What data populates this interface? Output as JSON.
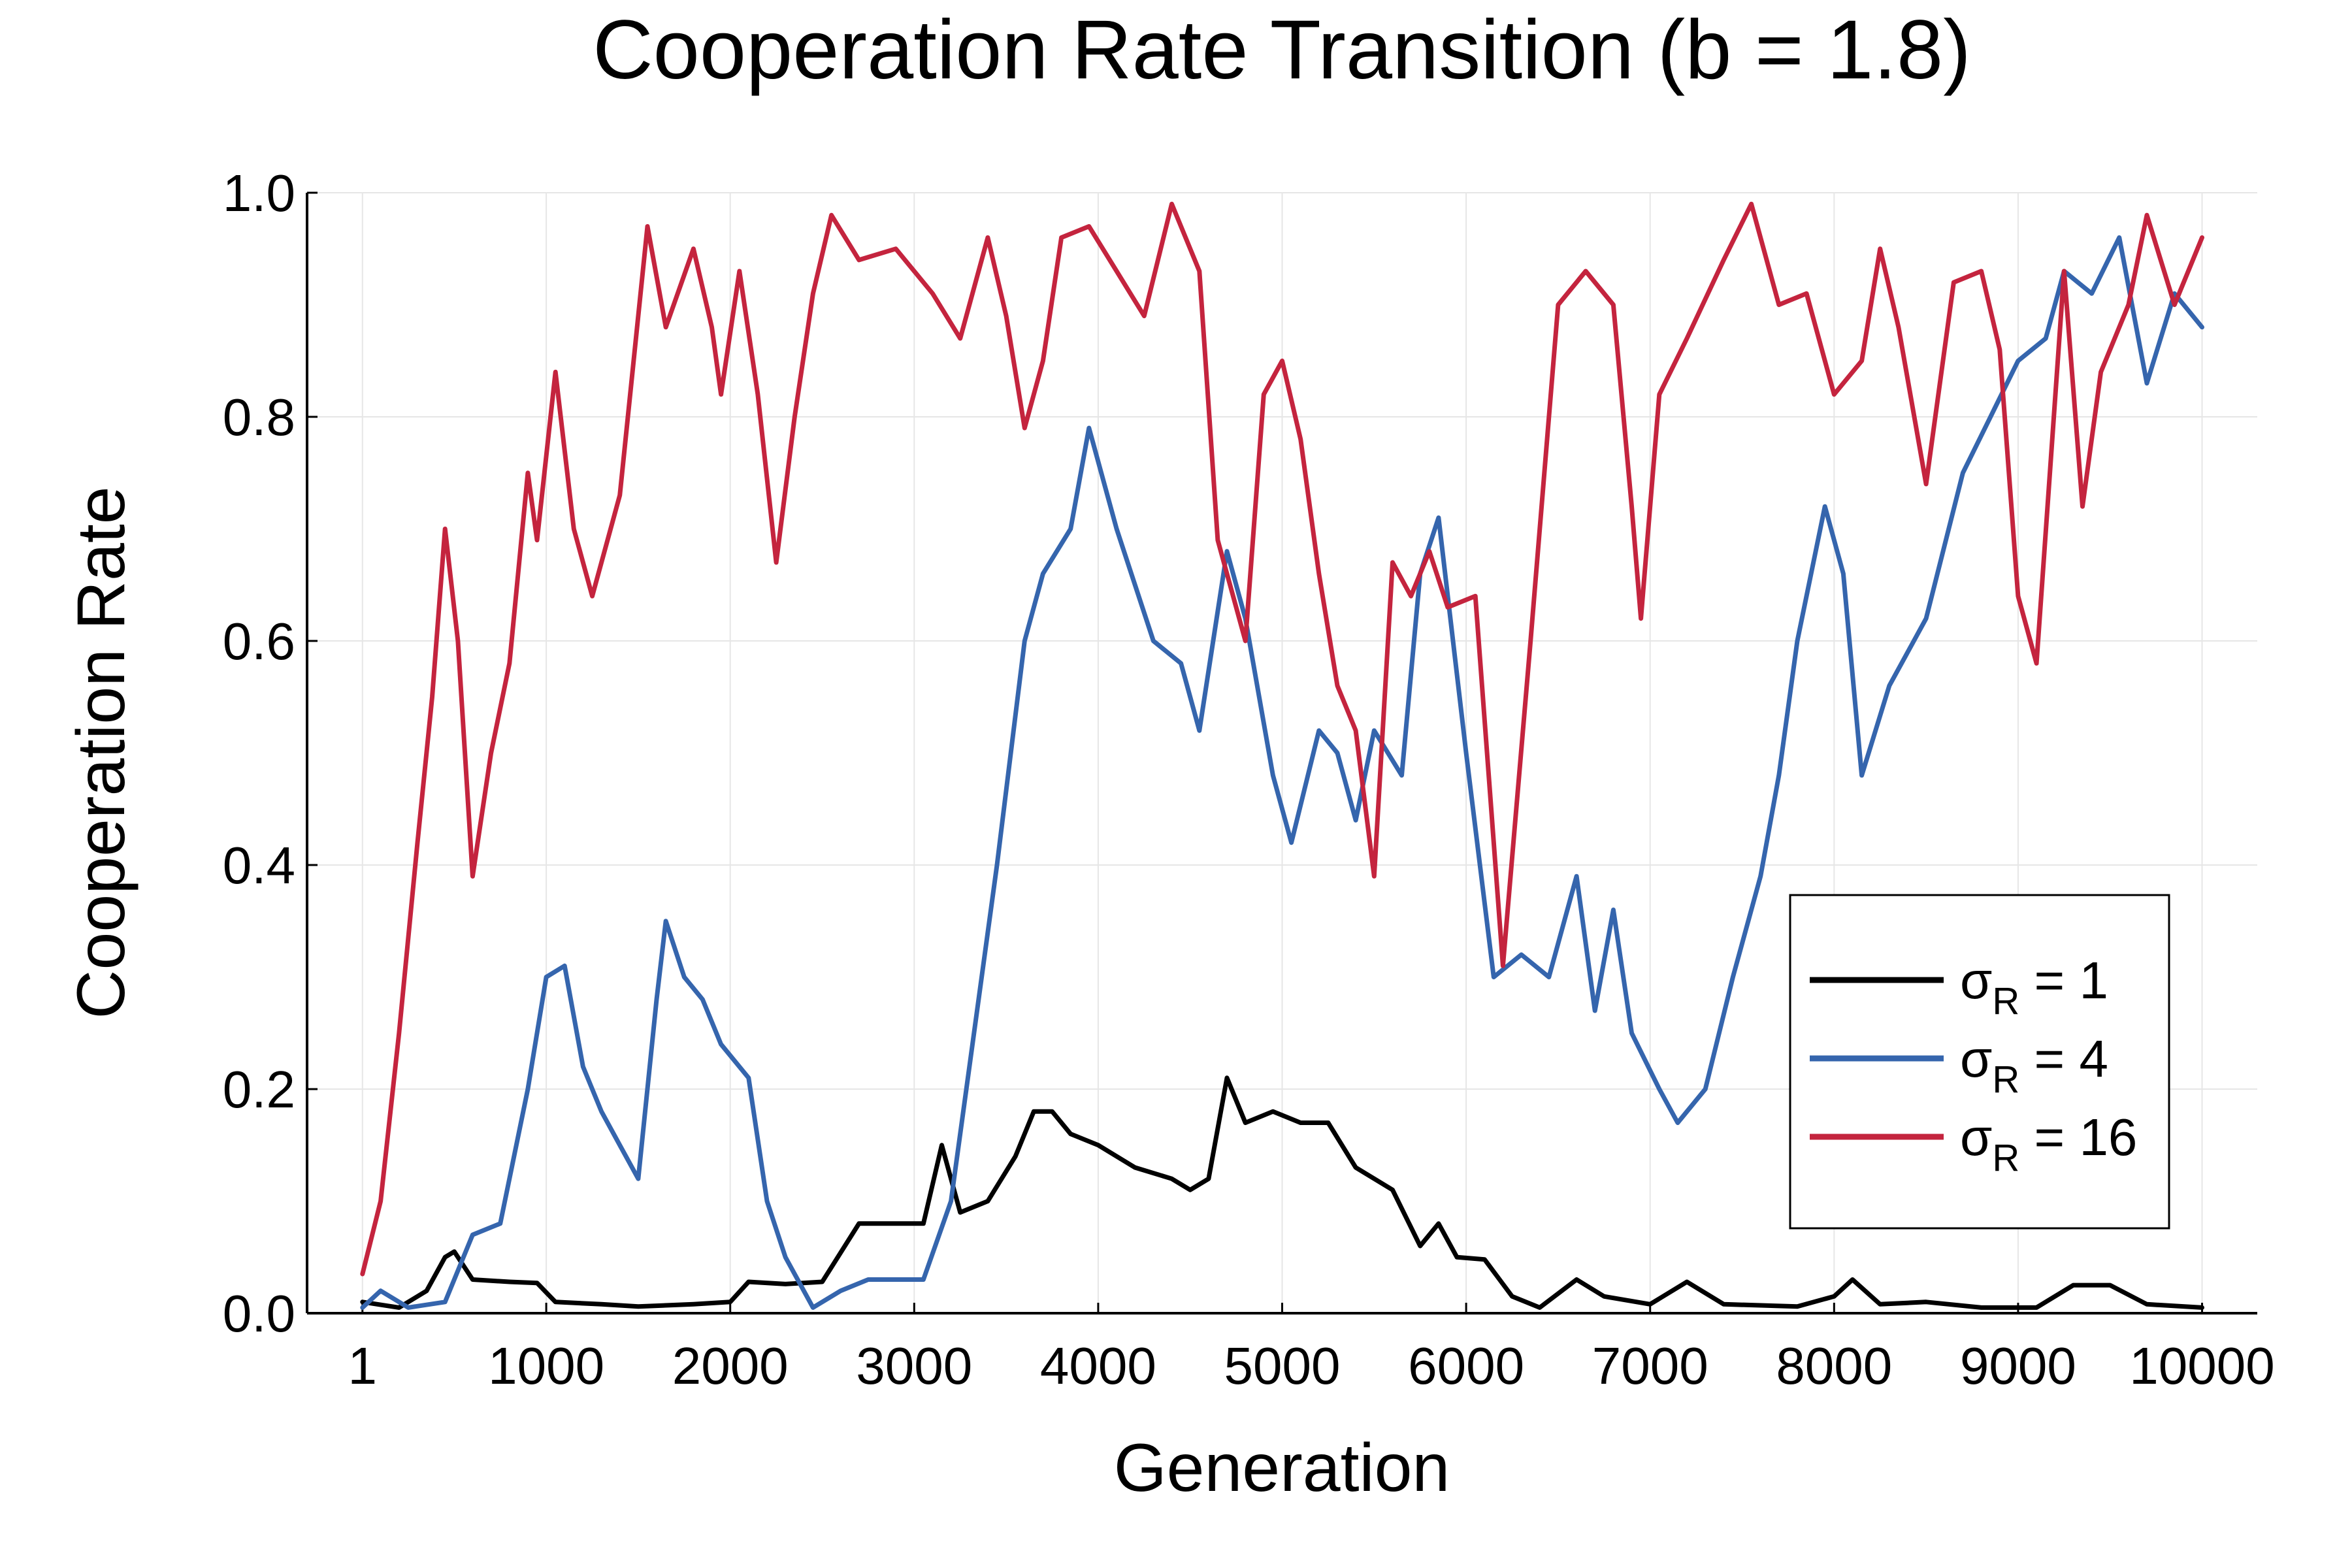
{
  "chart_data": {
    "type": "line",
    "title": "Cooperation Rate Transition (b = 1.8)",
    "xlabel": "Generation",
    "ylabel": "Cooperation Rate",
    "xlim": [
      -300,
      10300
    ],
    "ylim": [
      0,
      1
    ],
    "x_ticks": [
      1,
      1000,
      2000,
      3000,
      4000,
      5000,
      6000,
      7000,
      8000,
      9000,
      10000
    ],
    "x_tick_labels": [
      "1",
      "1000",
      "2000",
      "3000",
      "4000",
      "5000",
      "6000",
      "7000",
      "8000",
      "9000",
      "10000"
    ],
    "y_ticks": [
      0,
      0.2,
      0.4,
      0.6,
      0.8,
      1.0
    ],
    "y_tick_labels": [
      "0.0",
      "0.2",
      "0.4",
      "0.6",
      "0.8",
      "1.0"
    ],
    "grid": true,
    "legend_position": "bottom-right",
    "series": [
      {
        "name": "σ_R = 1",
        "legend_main": "σ",
        "legend_sub": "R",
        "legend_rest": " = 1",
        "color": "#000000",
        "points": [
          [
            1,
            0.01
          ],
          [
            200,
            0.005
          ],
          [
            350,
            0.02
          ],
          [
            450,
            0.05
          ],
          [
            500,
            0.055
          ],
          [
            600,
            0.03
          ],
          [
            800,
            0.028
          ],
          [
            950,
            0.027
          ],
          [
            1050,
            0.01
          ],
          [
            1300,
            0.008
          ],
          [
            1500,
            0.006
          ],
          [
            1800,
            0.008
          ],
          [
            2000,
            0.01
          ],
          [
            2100,
            0.028
          ],
          [
            2300,
            0.026
          ],
          [
            2500,
            0.028
          ],
          [
            2700,
            0.08
          ],
          [
            2900,
            0.08
          ],
          [
            3050,
            0.08
          ],
          [
            3150,
            0.15
          ],
          [
            3250,
            0.09
          ],
          [
            3400,
            0.1
          ],
          [
            3550,
            0.14
          ],
          [
            3650,
            0.18
          ],
          [
            3750,
            0.18
          ],
          [
            3850,
            0.16
          ],
          [
            4000,
            0.15
          ],
          [
            4200,
            0.13
          ],
          [
            4400,
            0.12
          ],
          [
            4500,
            0.11
          ],
          [
            4600,
            0.12
          ],
          [
            4700,
            0.21
          ],
          [
            4800,
            0.17
          ],
          [
            4950,
            0.18
          ],
          [
            5100,
            0.17
          ],
          [
            5250,
            0.17
          ],
          [
            5400,
            0.13
          ],
          [
            5600,
            0.11
          ],
          [
            5750,
            0.06
          ],
          [
            5850,
            0.08
          ],
          [
            5950,
            0.05
          ],
          [
            6100,
            0.048
          ],
          [
            6250,
            0.015
          ],
          [
            6400,
            0.005
          ],
          [
            6600,
            0.03
          ],
          [
            6750,
            0.015
          ],
          [
            7000,
            0.008
          ],
          [
            7200,
            0.028
          ],
          [
            7400,
            0.008
          ],
          [
            7800,
            0.006
          ],
          [
            8000,
            0.015
          ],
          [
            8100,
            0.03
          ],
          [
            8250,
            0.008
          ],
          [
            8500,
            0.01
          ],
          [
            8800,
            0.005
          ],
          [
            9100,
            0.005
          ],
          [
            9300,
            0.025
          ],
          [
            9500,
            0.025
          ],
          [
            9700,
            0.008
          ],
          [
            10000,
            0.005
          ]
        ]
      },
      {
        "name": "σ_R = 4",
        "legend_main": "σ",
        "legend_sub": "R",
        "legend_rest": " = 4",
        "color": "#3565ad",
        "points": [
          [
            1,
            0.005
          ],
          [
            100,
            0.02
          ],
          [
            250,
            0.005
          ],
          [
            450,
            0.01
          ],
          [
            600,
            0.07
          ],
          [
            750,
            0.08
          ],
          [
            900,
            0.2
          ],
          [
            1000,
            0.3
          ],
          [
            1100,
            0.31
          ],
          [
            1200,
            0.22
          ],
          [
            1300,
            0.18
          ],
          [
            1400,
            0.15
          ],
          [
            1500,
            0.12
          ],
          [
            1600,
            0.28
          ],
          [
            1650,
            0.35
          ],
          [
            1750,
            0.3
          ],
          [
            1850,
            0.28
          ],
          [
            1950,
            0.24
          ],
          [
            2100,
            0.21
          ],
          [
            2200,
            0.1
          ],
          [
            2300,
            0.05
          ],
          [
            2450,
            0.005
          ],
          [
            2600,
            0.02
          ],
          [
            2750,
            0.03
          ],
          [
            2900,
            0.03
          ],
          [
            3050,
            0.03
          ],
          [
            3200,
            0.1
          ],
          [
            3300,
            0.22
          ],
          [
            3450,
            0.4
          ],
          [
            3600,
            0.6
          ],
          [
            3700,
            0.66
          ],
          [
            3850,
            0.7
          ],
          [
            3950,
            0.79
          ],
          [
            4100,
            0.7
          ],
          [
            4300,
            0.6
          ],
          [
            4450,
            0.58
          ],
          [
            4550,
            0.52
          ],
          [
            4700,
            0.68
          ],
          [
            4800,
            0.62
          ],
          [
            4950,
            0.48
          ],
          [
            5050,
            0.42
          ],
          [
            5200,
            0.52
          ],
          [
            5300,
            0.5
          ],
          [
            5400,
            0.44
          ],
          [
            5500,
            0.52
          ],
          [
            5650,
            0.48
          ],
          [
            5750,
            0.66
          ],
          [
            5850,
            0.71
          ],
          [
            6000,
            0.5
          ],
          [
            6150,
            0.3
          ],
          [
            6300,
            0.32
          ],
          [
            6450,
            0.3
          ],
          [
            6600,
            0.39
          ],
          [
            6700,
            0.27
          ],
          [
            6800,
            0.36
          ],
          [
            6900,
            0.25
          ],
          [
            7050,
            0.2
          ],
          [
            7150,
            0.17
          ],
          [
            7300,
            0.2
          ],
          [
            7450,
            0.3
          ],
          [
            7600,
            0.39
          ],
          [
            7700,
            0.48
          ],
          [
            7800,
            0.6
          ],
          [
            7950,
            0.72
          ],
          [
            8050,
            0.66
          ],
          [
            8150,
            0.48
          ],
          [
            8300,
            0.56
          ],
          [
            8500,
            0.62
          ],
          [
            8700,
            0.75
          ],
          [
            8850,
            0.8
          ],
          [
            9000,
            0.85
          ],
          [
            9150,
            0.87
          ],
          [
            9250,
            0.93
          ],
          [
            9400,
            0.91
          ],
          [
            9550,
            0.96
          ],
          [
            9700,
            0.83
          ],
          [
            9850,
            0.91
          ],
          [
            10000,
            0.88
          ]
        ]
      },
      {
        "name": "σ_R = 16",
        "legend_main": "σ",
        "legend_sub": "R",
        "legend_rest": " = 16",
        "color": "#c4243e",
        "points": [
          [
            1,
            0.035
          ],
          [
            100,
            0.1
          ],
          [
            200,
            0.25
          ],
          [
            300,
            0.42
          ],
          [
            380,
            0.55
          ],
          [
            450,
            0.7
          ],
          [
            520,
            0.6
          ],
          [
            600,
            0.39
          ],
          [
            700,
            0.5
          ],
          [
            800,
            0.58
          ],
          [
            900,
            0.75
          ],
          [
            950,
            0.69
          ],
          [
            1050,
            0.84
          ],
          [
            1150,
            0.7
          ],
          [
            1250,
            0.64
          ],
          [
            1400,
            0.73
          ],
          [
            1550,
            0.97
          ],
          [
            1650,
            0.88
          ],
          [
            1800,
            0.95
          ],
          [
            1900,
            0.88
          ],
          [
            1950,
            0.82
          ],
          [
            2050,
            0.93
          ],
          [
            2150,
            0.82
          ],
          [
            2250,
            0.67
          ],
          [
            2350,
            0.8
          ],
          [
            2450,
            0.91
          ],
          [
            2550,
            0.98
          ],
          [
            2700,
            0.94
          ],
          [
            2900,
            0.95
          ],
          [
            3100,
            0.91
          ],
          [
            3250,
            0.87
          ],
          [
            3400,
            0.96
          ],
          [
            3500,
            0.89
          ],
          [
            3600,
            0.79
          ],
          [
            3700,
            0.85
          ],
          [
            3800,
            0.96
          ],
          [
            3950,
            0.97
          ],
          [
            4100,
            0.93
          ],
          [
            4250,
            0.89
          ],
          [
            4400,
            0.99
          ],
          [
            4550,
            0.93
          ],
          [
            4650,
            0.69
          ],
          [
            4800,
            0.6
          ],
          [
            4900,
            0.82
          ],
          [
            5000,
            0.85
          ],
          [
            5100,
            0.78
          ],
          [
            5200,
            0.66
          ],
          [
            5300,
            0.56
          ],
          [
            5400,
            0.52
          ],
          [
            5500,
            0.39
          ],
          [
            5600,
            0.67
          ],
          [
            5700,
            0.64
          ],
          [
            5800,
            0.68
          ],
          [
            5900,
            0.63
          ],
          [
            6050,
            0.64
          ],
          [
            6200,
            0.31
          ],
          [
            6350,
            0.6
          ],
          [
            6500,
            0.9
          ],
          [
            6650,
            0.93
          ],
          [
            6800,
            0.9
          ],
          [
            6900,
            0.72
          ],
          [
            6950,
            0.62
          ],
          [
            7050,
            0.82
          ],
          [
            7200,
            0.87
          ],
          [
            7400,
            0.94
          ],
          [
            7550,
            0.99
          ],
          [
            7700,
            0.9
          ],
          [
            7850,
            0.91
          ],
          [
            8000,
            0.82
          ],
          [
            8150,
            0.85
          ],
          [
            8250,
            0.95
          ],
          [
            8350,
            0.88
          ],
          [
            8500,
            0.74
          ],
          [
            8650,
            0.92
          ],
          [
            8800,
            0.93
          ],
          [
            8900,
            0.86
          ],
          [
            9000,
            0.64
          ],
          [
            9100,
            0.58
          ],
          [
            9250,
            0.93
          ],
          [
            9350,
            0.72
          ],
          [
            9450,
            0.84
          ],
          [
            9600,
            0.9
          ],
          [
            9700,
            0.98
          ],
          [
            9850,
            0.9
          ],
          [
            10000,
            0.96
          ]
        ]
      }
    ]
  }
}
